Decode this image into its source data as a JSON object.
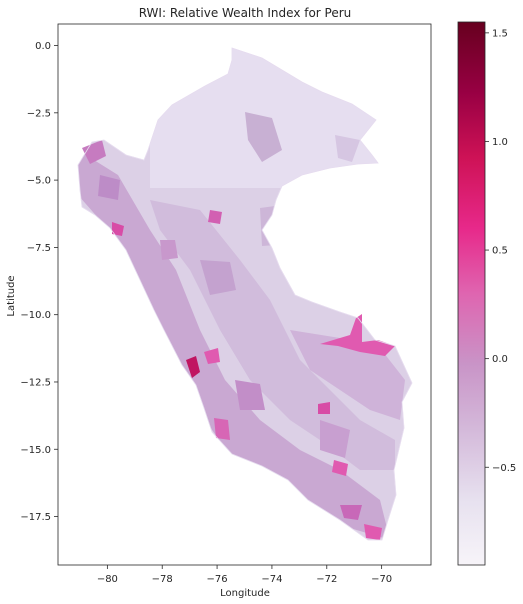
{
  "chart_data": {
    "type": "heatmap",
    "title": "RWI: Relative Wealth Index for Peru",
    "xlabel": "Longitude",
    "ylabel": "Latitude",
    "xlim": [
      -81.8,
      -68.2
    ],
    "ylim": [
      -19.3,
      0.8
    ],
    "x_ticks": [
      -80,
      -78,
      -76,
      -74,
      -72,
      -70
    ],
    "x_tick_labels": [
      "−80",
      "−78",
      "−76",
      "−74",
      "−72",
      "−70"
    ],
    "y_ticks": [
      0.0,
      -2.5,
      -5.0,
      -7.5,
      -10.0,
      -12.5,
      -15.0,
      -17.5
    ],
    "y_tick_labels": [
      "0.0",
      "−2.5",
      "−5.0",
      "−7.5",
      "−10.0",
      "−12.5",
      "−15.0",
      "−17.5"
    ],
    "grid": false,
    "colorbar": {
      "colormap": "PuRd",
      "min": -0.95,
      "max": 1.55,
      "ticks": [
        -0.5,
        0.0,
        0.5,
        1.0,
        1.5
      ],
      "tick_labels": [
        "−0.5",
        "0.0",
        "0.5",
        "1.0",
        "1.5"
      ],
      "colors": [
        "#f7f4f9",
        "#e7e1ef",
        "#d4b9da",
        "#c994c7",
        "#df65b0",
        "#e7298a",
        "#ce1256",
        "#980043",
        "#67001f"
      ]
    },
    "highlighted_regions": [
      {
        "lon": -71.3,
        "lat": -11.3,
        "rwi": 0.5
      },
      {
        "lon": -77.0,
        "lat": -12.1,
        "rwi": 1.3
      },
      {
        "lon": -70.5,
        "lat": -18.0,
        "rwi": 0.5
      },
      {
        "lon": -71.5,
        "lat": -16.4,
        "rwi": 0.5
      },
      {
        "lon": -79.7,
        "lat": -5.5,
        "rwi": 0.3
      },
      {
        "lon": -76.3,
        "lat": -14.0,
        "rwi": 0.3
      }
    ]
  }
}
